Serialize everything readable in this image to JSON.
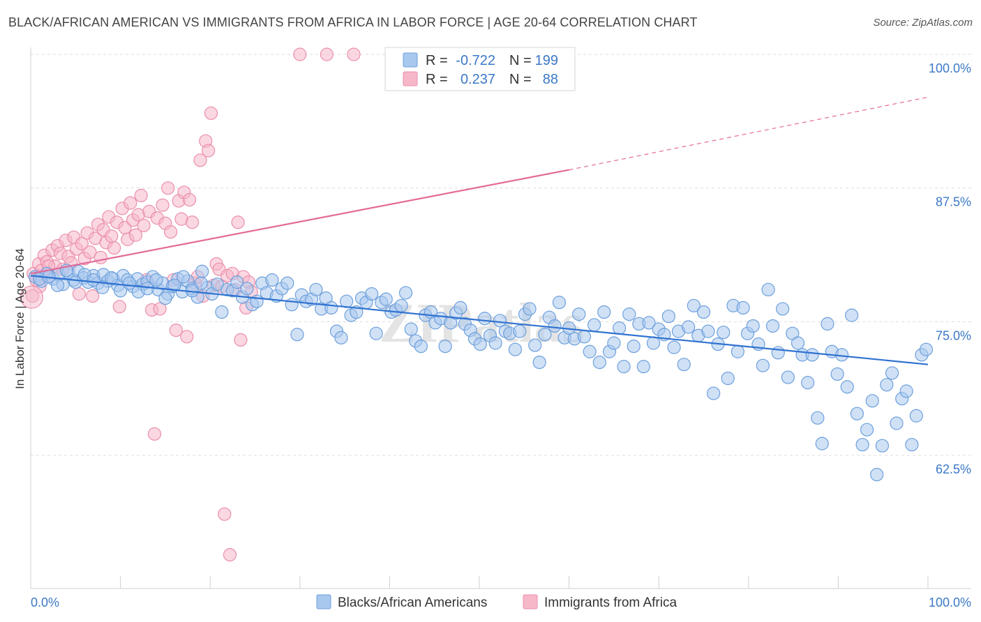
{
  "header": {
    "title": "BLACK/AFRICAN AMERICAN VS IMMIGRANTS FROM AFRICA IN LABOR FORCE | AGE 20-64 CORRELATION CHART",
    "source": "Source: ZipAtlas.com"
  },
  "colors": {
    "blue_fill": "#a9c8ee",
    "blue_stroke": "#6c9fdc",
    "blue_line": "#2f72d0",
    "pink_fill": "#f6b7c9",
    "pink_stroke": "#ea8fab",
    "pink_line": "#e46a97",
    "grid": "#dcdcdc",
    "tick_text": "#3b78c7"
  },
  "legend": {
    "r_label": "R =",
    "n_label": "N =",
    "series": [
      {
        "r": "-0.722",
        "n": "199"
      },
      {
        "r": "0.237",
        "n": "88"
      }
    ]
  },
  "chart_data": {
    "type": "scatter",
    "title": "BLACK/AFRICAN AMERICAN VS IMMIGRANTS FROM AFRICA IN LABOR FORCE | AGE 20-64 CORRELATION CHART",
    "xlabel": "",
    "ylabel": "In Labor Force | Age 20-64",
    "xlim": [
      0,
      100
    ],
    "ylim": [
      50.5,
      101.5
    ],
    "x_tick_labels": [
      "0.0%",
      "100.0%"
    ],
    "y_ticks": [
      62.5,
      75.0,
      87.5,
      100.0
    ],
    "y_tick_labels": [
      "62.5%",
      "75.0%",
      "87.5%",
      "100.0%"
    ],
    "grid": true,
    "legend_position": "top-center",
    "series": [
      {
        "name": "Blacks/African Americans",
        "r": -0.722,
        "n": 199,
        "trend": {
          "x": [
            0,
            100
          ],
          "y": [
            79.3,
            71.0
          ]
        },
        "points": [
          [
            0.5,
            79.2
          ],
          [
            1.2,
            78.8
          ],
          [
            1.8,
            79.5
          ],
          [
            2.5,
            79.0
          ],
          [
            3.1,
            79.4
          ],
          [
            3.6,
            78.5
          ],
          [
            4.2,
            79.6
          ],
          [
            4.8,
            78.9
          ],
          [
            5.3,
            79.7
          ],
          [
            5.9,
            79.1
          ],
          [
            6.4,
            78.7
          ],
          [
            7.0,
            79.3
          ],
          [
            7.5,
            78.6
          ],
          [
            8.1,
            79.4
          ],
          [
            8.6,
            78.8
          ],
          [
            9.2,
            79.0
          ],
          [
            9.7,
            78.4
          ],
          [
            10.3,
            79.3
          ],
          [
            10.8,
            78.9
          ],
          [
            11.4,
            78.3
          ],
          [
            11.9,
            79.0
          ],
          [
            12.5,
            78.5
          ],
          [
            13.0,
            78.7
          ],
          [
            13.6,
            79.2
          ],
          [
            14.2,
            78.0
          ],
          [
            14.7,
            78.6
          ],
          [
            15.3,
            77.6
          ],
          [
            15.8,
            78.3
          ],
          [
            16.4,
            79.0
          ],
          [
            16.9,
            77.8
          ],
          [
            17.5,
            78.8
          ],
          [
            18.0,
            78.1
          ],
          [
            18.6,
            77.3
          ],
          [
            19.1,
            79.7
          ],
          [
            19.7,
            78.2
          ],
          [
            20.2,
            77.6
          ],
          [
            20.8,
            78.5
          ],
          [
            21.3,
            75.9
          ],
          [
            21.9,
            78.0
          ],
          [
            22.5,
            77.9
          ],
          [
            23.0,
            78.7
          ],
          [
            23.6,
            77.3
          ],
          [
            24.1,
            78.1
          ],
          [
            24.7,
            76.6
          ],
          [
            25.2,
            76.9
          ],
          [
            25.8,
            78.6
          ],
          [
            26.3,
            77.7
          ],
          [
            26.9,
            78.9
          ],
          [
            27.4,
            77.4
          ],
          [
            28.0,
            78.1
          ],
          [
            28.6,
            78.6
          ],
          [
            29.1,
            76.6
          ],
          [
            29.7,
            73.8
          ],
          [
            30.2,
            77.5
          ],
          [
            30.7,
            76.9
          ],
          [
            31.3,
            77.1
          ],
          [
            31.8,
            78.0
          ],
          [
            32.4,
            76.2
          ],
          [
            32.9,
            77.2
          ],
          [
            33.5,
            76.3
          ],
          [
            34.1,
            74.1
          ],
          [
            34.6,
            73.5
          ],
          [
            35.2,
            76.9
          ],
          [
            35.7,
            75.6
          ],
          [
            36.3,
            75.9
          ],
          [
            36.9,
            77.2
          ],
          [
            37.4,
            76.8
          ],
          [
            38.0,
            77.6
          ],
          [
            38.5,
            73.9
          ],
          [
            39.1,
            76.8
          ],
          [
            39.6,
            77.1
          ],
          [
            40.2,
            75.9
          ],
          [
            40.7,
            76.1
          ],
          [
            41.3,
            76.5
          ],
          [
            41.8,
            77.7
          ],
          [
            42.4,
            74.3
          ],
          [
            42.9,
            73.2
          ],
          [
            43.5,
            72.7
          ],
          [
            44.0,
            75.6
          ],
          [
            44.6,
            75.9
          ],
          [
            45.1,
            74.9
          ],
          [
            45.7,
            75.3
          ],
          [
            46.2,
            72.7
          ],
          [
            46.8,
            74.9
          ],
          [
            47.4,
            75.8
          ],
          [
            47.9,
            76.3
          ],
          [
            48.4,
            74.8
          ],
          [
            49.0,
            74.2
          ],
          [
            49.5,
            73.4
          ],
          [
            50.1,
            72.9
          ],
          [
            50.6,
            75.3
          ],
          [
            51.2,
            73.7
          ],
          [
            51.8,
            73.0
          ],
          [
            52.3,
            75.1
          ],
          [
            52.9,
            74.1
          ],
          [
            53.4,
            73.9
          ],
          [
            54.0,
            72.4
          ],
          [
            54.5,
            74.1
          ],
          [
            55.1,
            75.7
          ],
          [
            55.6,
            76.2
          ],
          [
            56.2,
            72.8
          ],
          [
            56.7,
            71.2
          ],
          [
            57.3,
            73.8
          ],
          [
            57.8,
            75.4
          ],
          [
            58.4,
            74.6
          ],
          [
            58.9,
            76.8
          ],
          [
            59.5,
            73.5
          ],
          [
            60.0,
            74.4
          ],
          [
            60.6,
            73.4
          ],
          [
            61.1,
            75.7
          ],
          [
            61.7,
            73.6
          ],
          [
            62.3,
            72.2
          ],
          [
            62.8,
            74.7
          ],
          [
            63.4,
            71.2
          ],
          [
            63.9,
            75.9
          ],
          [
            64.5,
            72.2
          ],
          [
            65.0,
            73.0
          ],
          [
            65.6,
            74.4
          ],
          [
            66.1,
            70.8
          ],
          [
            66.7,
            75.7
          ],
          [
            67.2,
            72.7
          ],
          [
            67.8,
            74.8
          ],
          [
            68.3,
            70.8
          ],
          [
            68.9,
            74.9
          ],
          [
            69.4,
            73.0
          ],
          [
            70.0,
            74.3
          ],
          [
            70.6,
            73.8
          ],
          [
            71.1,
            75.5
          ],
          [
            71.7,
            72.6
          ],
          [
            72.2,
            74.1
          ],
          [
            72.8,
            71.0
          ],
          [
            73.3,
            74.5
          ],
          [
            73.9,
            76.5
          ],
          [
            74.4,
            73.7
          ],
          [
            75.0,
            75.9
          ],
          [
            75.5,
            74.1
          ],
          [
            76.1,
            68.3
          ],
          [
            76.6,
            72.9
          ],
          [
            77.2,
            74.0
          ],
          [
            77.7,
            69.7
          ],
          [
            78.3,
            76.5
          ],
          [
            78.8,
            72.2
          ],
          [
            79.4,
            76.3
          ],
          [
            79.9,
            73.9
          ],
          [
            80.5,
            74.6
          ],
          [
            81.1,
            72.9
          ],
          [
            81.6,
            70.9
          ],
          [
            82.2,
            78.0
          ],
          [
            82.7,
            74.6
          ],
          [
            83.3,
            72.1
          ],
          [
            83.8,
            76.2
          ],
          [
            84.4,
            69.8
          ],
          [
            84.9,
            73.9
          ],
          [
            85.5,
            73.0
          ],
          [
            86.0,
            71.9
          ],
          [
            86.6,
            69.3
          ],
          [
            87.1,
            71.9
          ],
          [
            87.7,
            66.0
          ],
          [
            88.2,
            63.6
          ],
          [
            88.8,
            74.8
          ],
          [
            89.3,
            72.2
          ],
          [
            89.9,
            70.1
          ],
          [
            90.4,
            71.9
          ],
          [
            91.0,
            68.9
          ],
          [
            91.5,
            75.6
          ],
          [
            92.1,
            66.4
          ],
          [
            92.7,
            63.5
          ],
          [
            93.2,
            64.9
          ],
          [
            93.8,
            67.6
          ],
          [
            94.3,
            60.7
          ],
          [
            94.9,
            63.4
          ],
          [
            95.4,
            69.1
          ],
          [
            96.0,
            70.2
          ],
          [
            96.5,
            65.5
          ],
          [
            97.1,
            67.8
          ],
          [
            97.6,
            68.5
          ],
          [
            98.2,
            63.5
          ],
          [
            98.7,
            66.2
          ],
          [
            99.3,
            71.9
          ],
          [
            99.8,
            72.4
          ],
          [
            1.0,
            79.0
          ],
          [
            2.0,
            79.2
          ],
          [
            3.0,
            78.4
          ],
          [
            4.0,
            79.8
          ],
          [
            5.0,
            78.7
          ],
          [
            6.0,
            79.4
          ],
          [
            7.0,
            78.9
          ],
          [
            8.0,
            78.2
          ],
          [
            9.0,
            79.1
          ],
          [
            10.0,
            77.9
          ],
          [
            11.0,
            78.6
          ],
          [
            12.0,
            77.8
          ],
          [
            13.0,
            78.1
          ],
          [
            14.0,
            78.9
          ],
          [
            15.0,
            77.2
          ],
          [
            16.0,
            78.4
          ],
          [
            17.0,
            79.2
          ],
          [
            18.0,
            77.9
          ],
          [
            19.0,
            78.6
          ]
        ]
      },
      {
        "name": "Immigrants from Africa",
        "r": 0.237,
        "n": 88,
        "trend": {
          "x": [
            0,
            60
          ],
          "y": [
            79.5,
            89.2
          ]
        },
        "trend_dashed": {
          "x": [
            60,
            100
          ],
          "y": [
            89.2,
            96.0
          ]
        },
        "points": [
          [
            0.3,
            79.5
          ],
          [
            0.6,
            78.9
          ],
          [
            0.9,
            80.4
          ],
          [
            1.2,
            79.8
          ],
          [
            1.5,
            81.2
          ],
          [
            1.8,
            80.6
          ],
          [
            2.1,
            79.3
          ],
          [
            2.4,
            81.7
          ],
          [
            2.7,
            80.2
          ],
          [
            3.0,
            82.1
          ],
          [
            3.3,
            81.4
          ],
          [
            3.6,
            79.9
          ],
          [
            3.9,
            82.6
          ],
          [
            4.2,
            81.1
          ],
          [
            4.5,
            80.5
          ],
          [
            4.8,
            82.9
          ],
          [
            5.1,
            81.8
          ],
          [
            5.4,
            77.6
          ],
          [
            5.7,
            82.3
          ],
          [
            6.0,
            80.9
          ],
          [
            6.3,
            83.3
          ],
          [
            6.6,
            81.5
          ],
          [
            6.9,
            77.4
          ],
          [
            7.2,
            82.8
          ],
          [
            7.5,
            84.1
          ],
          [
            7.8,
            81.0
          ],
          [
            8.1,
            83.6
          ],
          [
            8.4,
            82.4
          ],
          [
            8.7,
            84.8
          ],
          [
            9.0,
            83.0
          ],
          [
            9.3,
            81.9
          ],
          [
            9.6,
            84.3
          ],
          [
            9.9,
            76.4
          ],
          [
            10.2,
            85.6
          ],
          [
            10.5,
            83.8
          ],
          [
            10.8,
            82.7
          ],
          [
            11.1,
            86.1
          ],
          [
            11.4,
            84.5
          ],
          [
            11.7,
            83.1
          ],
          [
            12.0,
            85.0
          ],
          [
            12.3,
            86.8
          ],
          [
            12.6,
            84.0
          ],
          [
            12.9,
            78.9
          ],
          [
            13.2,
            85.3
          ],
          [
            13.5,
            76.1
          ],
          [
            13.8,
            64.5
          ],
          [
            14.1,
            84.7
          ],
          [
            14.4,
            76.2
          ],
          [
            14.7,
            85.9
          ],
          [
            15.0,
            84.2
          ],
          [
            15.3,
            87.5
          ],
          [
            15.6,
            83.4
          ],
          [
            15.9,
            78.9
          ],
          [
            16.2,
            74.2
          ],
          [
            16.5,
            86.3
          ],
          [
            16.8,
            84.6
          ],
          [
            17.1,
            87.1
          ],
          [
            17.4,
            73.6
          ],
          [
            17.7,
            86.4
          ],
          [
            18.0,
            84.3
          ],
          [
            18.3,
            78.6
          ],
          [
            18.6,
            79.2
          ],
          [
            18.9,
            90.1
          ],
          [
            19.2,
            77.4
          ],
          [
            19.5,
            91.9
          ],
          [
            19.8,
            91.0
          ],
          [
            20.1,
            94.5
          ],
          [
            20.4,
            78.4
          ],
          [
            20.7,
            80.4
          ],
          [
            21.0,
            79.9
          ],
          [
            21.3,
            78.3
          ],
          [
            21.6,
            57.0
          ],
          [
            21.9,
            79.3
          ],
          [
            22.2,
            53.2
          ],
          [
            22.5,
            79.5
          ],
          [
            22.8,
            78.0
          ],
          [
            23.1,
            84.3
          ],
          [
            23.4,
            73.3
          ],
          [
            23.7,
            79.2
          ],
          [
            24.0,
            76.3
          ],
          [
            24.3,
            78.7
          ],
          [
            24.6,
            77.8
          ],
          [
            30.0,
            100.0
          ],
          [
            33.0,
            100.0
          ],
          [
            36.0,
            100.0
          ],
          [
            0.2,
            77.4
          ],
          [
            1.0,
            78.3
          ],
          [
            2.0,
            80.2
          ]
        ]
      }
    ]
  },
  "bottom_legend": {
    "items": [
      "Blacks/African Americans",
      "Immigrants from Africa"
    ]
  }
}
